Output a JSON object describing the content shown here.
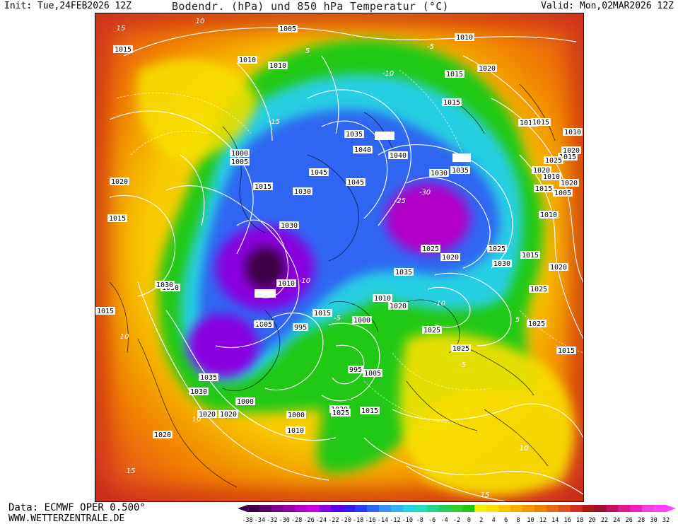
{
  "header": {
    "init": "Init: Tue,24FEB2026 12Z",
    "title": "Bodendr. (hPa) und 850 hPa Temperatur (°C)",
    "valid": "Valid: Mon,02MAR2026 12Z"
  },
  "footer": {
    "data_source": "Data: ECMWF OPER 0.500°",
    "website": "WWW.WETTERZENTRALE.DE"
  },
  "colorbar": {
    "ticks": [
      "-38",
      "-34",
      "-32",
      "-30",
      "-28",
      "-26",
      "-24",
      "-22",
      "-20",
      "-18",
      "-16",
      "-14",
      "-12",
      "-10",
      "-8",
      "-6",
      "-4",
      "-2",
      "0",
      "2",
      "4",
      "6",
      "8",
      "10",
      "12",
      "14",
      "16",
      "18",
      "20",
      "22",
      "24",
      "26",
      "28",
      "30",
      "32"
    ],
    "colors": [
      "#3c0044",
      "#5a0066",
      "#7a0088",
      "#9400a8",
      "#b200c8",
      "#c800e0",
      "#8a00e0",
      "#5a00e6",
      "#3a18e8",
      "#2a3cf0",
      "#2e66f2",
      "#3a90f4",
      "#30b4f0",
      "#28d0e4",
      "#22e0c0",
      "#22d890",
      "#22d060",
      "#30d030",
      "#22c818",
      "#f4f400",
      "#f8e000",
      "#f8c800",
      "#f8b000",
      "#f89800",
      "#f08000",
      "#e86818",
      "#e05020",
      "#d03020",
      "#b01818",
      "#a01030",
      "#c01060",
      "#e01890",
      "#f020c0",
      "#f040e0",
      "#ff40ff"
    ]
  },
  "map": {
    "pressure_labels": [
      {
        "text": "1005"
      },
      {
        "text": "1010"
      },
      {
        "text": "1015"
      },
      {
        "text": "1010"
      },
      {
        "text": "1010"
      },
      {
        "text": "1020"
      },
      {
        "text": "1015"
      },
      {
        "text": "1015"
      },
      {
        "text": "1015"
      },
      {
        "text": "1020"
      },
      {
        "text": "1000"
      },
      {
        "text": "1005"
      },
      {
        "text": "1030"
      },
      {
        "text": "1045"
      },
      {
        "text": "1035"
      },
      {
        "text": "1040"
      },
      {
        "text": "1040"
      },
      {
        "text": "1045"
      },
      {
        "text": "1030"
      },
      {
        "text": "1035"
      },
      {
        "text": "1015"
      },
      {
        "text": "1030"
      },
      {
        "text": "1020"
      },
      {
        "text": "1025"
      },
      {
        "text": "1025"
      },
      {
        "text": "1020"
      },
      {
        "text": "1030"
      },
      {
        "text": "1035"
      },
      {
        "text": "1010"
      },
      {
        "text": "1010"
      },
      {
        "text": "1015"
      },
      {
        "text": "1005"
      },
      {
        "text": "1000"
      },
      {
        "text": "995"
      },
      {
        "text": "995"
      },
      {
        "text": "1005"
      },
      {
        "text": "1000"
      },
      {
        "text": "1020"
      },
      {
        "text": "1025"
      },
      {
        "text": "1015"
      },
      {
        "text": "1025"
      },
      {
        "text": "1025"
      },
      {
        "text": "1020"
      },
      {
        "text": "1035"
      },
      {
        "text": "1030"
      },
      {
        "text": "1020"
      },
      {
        "text": "1020"
      },
      {
        "text": "1010"
      },
      {
        "text": "1000"
      },
      {
        "text": "1020"
      },
      {
        "text": "1030"
      },
      {
        "text": "1015"
      },
      {
        "text": "1015"
      },
      {
        "text": "1025"
      },
      {
        "text": "1020"
      },
      {
        "text": "1015"
      },
      {
        "text": "1020"
      },
      {
        "text": "1030"
      },
      {
        "text": "1025"
      },
      {
        "text": "1015"
      },
      {
        "text": "1010"
      },
      {
        "text": "1010"
      },
      {
        "text": "1005"
      },
      {
        "text": "1010"
      },
      {
        "text": "1015"
      },
      {
        "text": "1015"
      },
      {
        "text": "1020"
      },
      {
        "text": "1025"
      },
      {
        "text": "1015"
      }
    ],
    "temperature_labels": [
      {
        "text": "15"
      },
      {
        "text": "10"
      },
      {
        "text": "5"
      },
      {
        "text": "-5"
      },
      {
        "text": "-10"
      },
      {
        "text": "-15"
      },
      {
        "text": "-30"
      },
      {
        "text": "-25"
      },
      {
        "text": "-10"
      },
      {
        "text": "-5"
      },
      {
        "text": "10"
      },
      {
        "text": "15"
      },
      {
        "text": "-15"
      },
      {
        "text": "-10"
      },
      {
        "text": "5"
      },
      {
        "text": "10"
      },
      {
        "text": "-5"
      },
      {
        "text": "15"
      },
      {
        "text": "10"
      }
    ]
  }
}
